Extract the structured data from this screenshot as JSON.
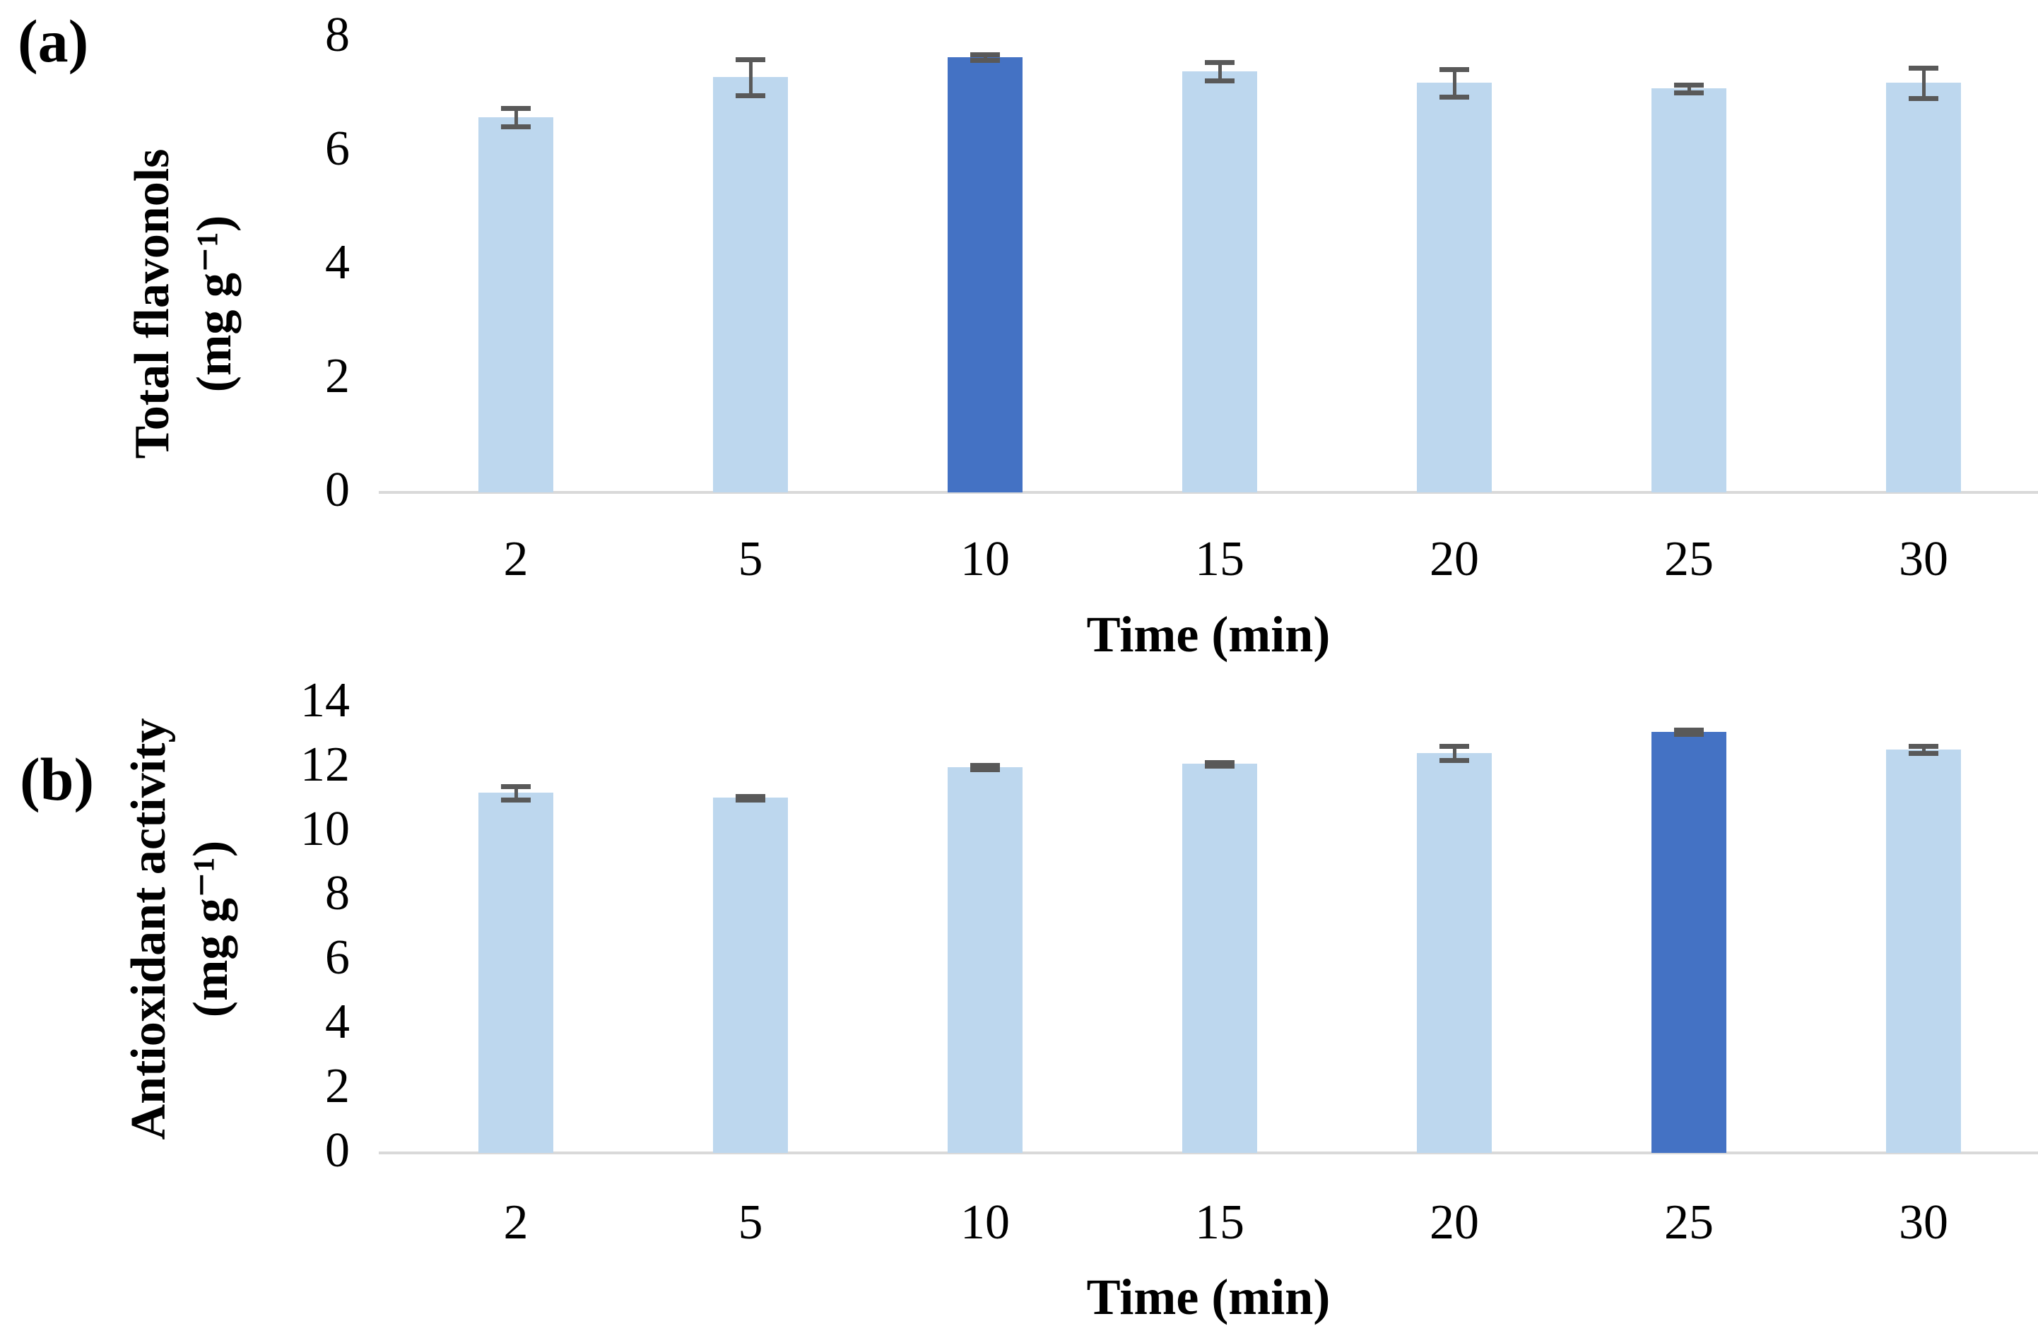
{
  "figure": {
    "background": "#FFFFFF",
    "text_color": "#000000"
  },
  "panels": [
    {
      "panel_label": "(a)",
      "y_axis_label": "Total flavonols",
      "y_axis_unit": "(mg g⁻¹)",
      "x_axis_label": "Time (min)"
    },
    {
      "panel_label": "(b)",
      "y_axis_label": "Antioxidant activity",
      "y_axis_unit": "(mg g⁻¹)",
      "x_axis_label": "Time (min)"
    }
  ],
  "chart_data": [
    {
      "type": "bar",
      "panel": "a",
      "title": "",
      "categories": [
        "2",
        "5",
        "10",
        "15",
        "20",
        "25",
        "30"
      ],
      "values": [
        6.6,
        7.3,
        7.65,
        7.4,
        7.2,
        7.1,
        7.2
      ],
      "errors": [
        0.16,
        0.32,
        0.05,
        0.16,
        0.24,
        0.07,
        0.27
      ],
      "highlighted_index": 2,
      "highlighted_category": "10",
      "xlabel": "Time (min)",
      "ylabel": "Total flavonols (mg g⁻¹)",
      "ylim": [
        0,
        8
      ],
      "yticks": [
        0,
        2,
        4,
        6,
        8
      ],
      "grid": false,
      "legend": false,
      "bar_color": "#BDD7EE",
      "highlight_color": "#4472C4",
      "error_color": "#595959",
      "axis_line_color": "#D9D9D9"
    },
    {
      "type": "bar",
      "panel": "b",
      "title": "",
      "categories": [
        "2",
        "5",
        "10",
        "15",
        "20",
        "25",
        "30"
      ],
      "values": [
        11.2,
        11.05,
        12.0,
        12.1,
        12.45,
        13.1,
        12.55
      ],
      "errors": [
        0.2,
        0.05,
        0.06,
        0.05,
        0.22,
        0.06,
        0.12
      ],
      "highlighted_index": 5,
      "highlighted_category": "25",
      "xlabel": "Time (min)",
      "ylabel": "Antioxidant activity (mg g⁻¹)",
      "ylim": [
        0,
        14
      ],
      "yticks": [
        0,
        2,
        4,
        6,
        8,
        10,
        12,
        14
      ],
      "grid": false,
      "legend": false,
      "bar_color": "#BDD7EE",
      "highlight_color": "#4472C4",
      "error_color": "#595959",
      "axis_line_color": "#D9D9D9"
    }
  ]
}
